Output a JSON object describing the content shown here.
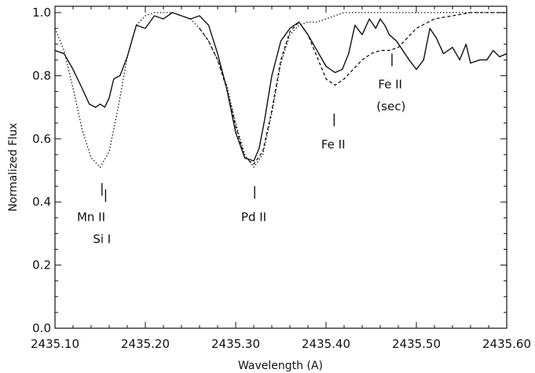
{
  "chart_data": {
    "type": "line",
    "xlabel": "Wavelength (A)",
    "ylabel": "Normalized Flux",
    "xlim": [
      2435.1,
      2435.6
    ],
    "ylim": [
      0.0,
      1.02
    ],
    "xticks": [
      2435.1,
      2435.2,
      2435.3,
      2435.4,
      2435.5,
      2435.6
    ],
    "xtick_labels": [
      "2435.10",
      "2435.20",
      "2435.30",
      "2435.40",
      "2435.50",
      "2435.60"
    ],
    "yticks": [
      0.0,
      0.2,
      0.4,
      0.6,
      0.8,
      1.0
    ],
    "ytick_labels": [
      "0.0",
      "0.2",
      "0.4",
      "0.6",
      "0.8",
      "1.0"
    ],
    "series": [
      {
        "style": "solid",
        "x": [
          2435.1,
          2435.11,
          2435.12,
          2435.13,
          2435.138,
          2435.145,
          2435.15,
          2435.155,
          2435.16,
          2435.165,
          2435.172,
          2435.18,
          2435.19,
          2435.2,
          2435.21,
          2435.22,
          2435.23,
          2435.24,
          2435.25,
          2435.26,
          2435.27,
          2435.28,
          2435.29,
          2435.3,
          2435.31,
          2435.32,
          2435.326,
          2435.332,
          2435.34,
          2435.35,
          2435.36,
          2435.37,
          2435.38,
          2435.39,
          2435.4,
          2435.41,
          2435.418,
          2435.425,
          2435.432,
          2435.44,
          2435.448,
          2435.455,
          2435.46,
          2435.465,
          2435.47,
          2435.478,
          2435.485,
          2435.492,
          2435.5,
          2435.508,
          2435.515,
          2435.522,
          2435.53,
          2435.54,
          2435.548,
          2435.555,
          2435.56,
          2435.57,
          2435.578,
          2435.585,
          2435.592,
          2435.6
        ],
        "y": [
          0.88,
          0.87,
          0.82,
          0.76,
          0.71,
          0.7,
          0.71,
          0.7,
          0.73,
          0.79,
          0.8,
          0.86,
          0.96,
          0.95,
          0.99,
          0.98,
          1.0,
          0.99,
          0.98,
          0.99,
          0.96,
          0.87,
          0.76,
          0.62,
          0.54,
          0.53,
          0.57,
          0.66,
          0.8,
          0.91,
          0.95,
          0.97,
          0.93,
          0.88,
          0.83,
          0.81,
          0.82,
          0.87,
          0.96,
          0.93,
          0.98,
          0.95,
          0.98,
          0.96,
          0.93,
          0.91,
          0.88,
          0.85,
          0.82,
          0.85,
          0.95,
          0.92,
          0.87,
          0.89,
          0.85,
          0.9,
          0.84,
          0.85,
          0.85,
          0.88,
          0.86,
          0.87
        ]
      },
      {
        "style": "dotted",
        "x": [
          2435.1,
          2435.11,
          2435.12,
          2435.13,
          2435.14,
          2435.15,
          2435.16,
          2435.17,
          2435.18,
          2435.19,
          2435.2,
          2435.21,
          2435.22,
          2435.23,
          2435.24,
          2435.25,
          2435.26,
          2435.27,
          2435.28,
          2435.29,
          2435.3,
          2435.31,
          2435.32,
          2435.33,
          2435.34,
          2435.35,
          2435.36,
          2435.37,
          2435.38,
          2435.39,
          2435.4,
          2435.41,
          2435.42,
          2435.43,
          2435.44,
          2435.46,
          2435.5,
          2435.55,
          2435.6
        ],
        "y": [
          0.95,
          0.88,
          0.76,
          0.63,
          0.54,
          0.51,
          0.56,
          0.7,
          0.86,
          0.96,
          0.99,
          1.0,
          1.0,
          1.0,
          0.99,
          0.98,
          0.95,
          0.91,
          0.85,
          0.77,
          0.65,
          0.55,
          0.51,
          0.55,
          0.68,
          0.84,
          0.93,
          0.96,
          0.97,
          0.97,
          0.98,
          0.99,
          1.0,
          1.0,
          1.0,
          1.0,
          1.0,
          1.0,
          1.0
        ]
      },
      {
        "style": "dashed",
        "x": [
          2435.26,
          2435.27,
          2435.28,
          2435.29,
          2435.3,
          2435.31,
          2435.32,
          2435.33,
          2435.34,
          2435.35,
          2435.36,
          2435.37,
          2435.38,
          2435.39,
          2435.4,
          2435.41,
          2435.42,
          2435.43,
          2435.44,
          2435.45,
          2435.46,
          2435.47,
          2435.48,
          2435.49,
          2435.5,
          2435.52,
          2435.54,
          2435.56,
          2435.58,
          2435.6
        ],
        "y": [
          0.95,
          0.91,
          0.85,
          0.76,
          0.64,
          0.54,
          0.52,
          0.56,
          0.69,
          0.85,
          0.94,
          0.97,
          0.93,
          0.86,
          0.79,
          0.77,
          0.79,
          0.82,
          0.85,
          0.87,
          0.88,
          0.88,
          0.89,
          0.92,
          0.95,
          0.98,
          0.99,
          1.0,
          1.0,
          1.0
        ]
      }
    ],
    "line_markers": [
      {
        "x": 2435.152,
        "y_bottom": 0.42,
        "y_top": 0.46
      },
      {
        "x": 2435.156,
        "y_bottom": 0.4,
        "y_top": 0.44
      },
      {
        "x": 2435.321,
        "y_bottom": 0.41,
        "y_top": 0.45
      },
      {
        "x": 2435.409,
        "y_bottom": 0.64,
        "y_top": 0.68
      },
      {
        "x": 2435.473,
        "y_bottom": 0.83,
        "y_top": 0.87
      }
    ],
    "annotations": [
      {
        "text": "Mn II",
        "x": 2435.14,
        "y": 0.34
      },
      {
        "text": "Si I",
        "x": 2435.152,
        "y": 0.27
      },
      {
        "text": "Pd II",
        "x": 2435.32,
        "y": 0.34
      },
      {
        "text": "Fe II",
        "x": 2435.408,
        "y": 0.57
      },
      {
        "text": "Fe II",
        "x": 2435.471,
        "y": 0.76
      },
      {
        "text": "(sec)",
        "x": 2435.472,
        "y": 0.69
      }
    ],
    "colors": {
      "line": "#111111",
      "background": "#ffffff"
    }
  }
}
